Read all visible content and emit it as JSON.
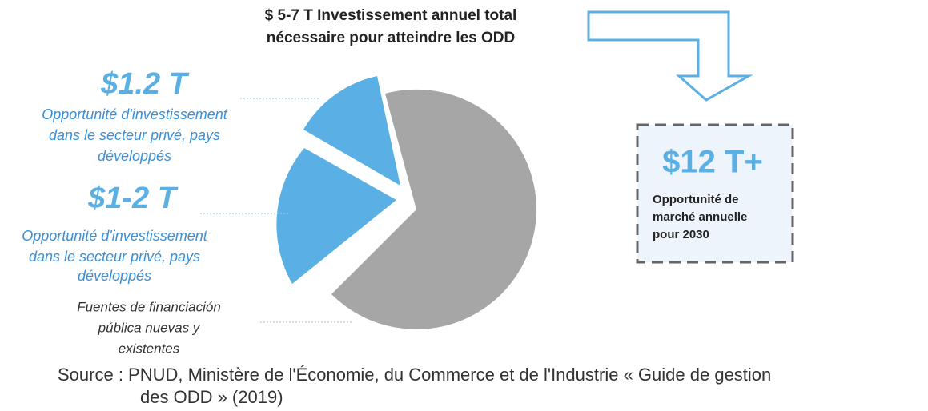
{
  "header": {
    "title_line1": "$ 5-7 T Investissement annuel total",
    "title_line2": "nécessaire pour atteindre les ODD"
  },
  "segments": [
    {
      "amount": "$1.2 T",
      "lines": [
        "Opportunité d'investissement",
        "dans le secteur privé, pays",
        "développés"
      ]
    },
    {
      "amount": "$1-2 T",
      "lines": [
        "Opportunité d'investissement",
        "dans le secteur privé, pays",
        "développés"
      ]
    },
    {
      "lines": [
        "Fuentes de financiación",
        "pública nuevas y",
        "existentes"
      ]
    }
  ],
  "market": {
    "amount": "$12 T+",
    "lines": [
      "Opportunité de",
      "marché annuelle",
      "pour 2030"
    ]
  },
  "source": {
    "line1": "Source : PNUD, Ministère de l'Économie, du Commerce et de l'Industrie « Guide de gestion",
    "line2": "des ODD » (2019)"
  }
}
